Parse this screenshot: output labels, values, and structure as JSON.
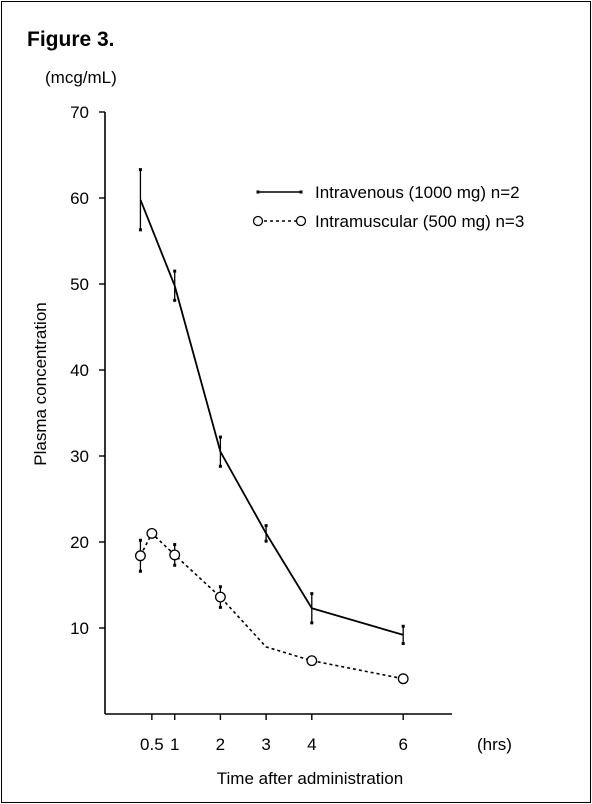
{
  "figure_label": "Figure 3.",
  "chart_data": {
    "type": "line",
    "title": "",
    "xlabel": "Time after administration",
    "x_unit": "(hrs)",
    "ylabel": "Plasma concentration",
    "y_unit": "(mcg/mL)",
    "ylim": [
      0,
      70
    ],
    "y_ticks": [
      10,
      20,
      30,
      40,
      50,
      60,
      70
    ],
    "x_ticks": [
      0.5,
      1,
      2,
      3,
      4,
      6
    ],
    "x_tick_labels": [
      "0.5",
      "1",
      "2",
      "3",
      "4",
      "6"
    ],
    "grid": false,
    "legend_position": "top-right",
    "series": [
      {
        "name": "Intravenous (1000 mg) n=2",
        "style": "solid",
        "marker": "none",
        "color": "#000000",
        "x": [
          0.25,
          1,
          2,
          3,
          4,
          6
        ],
        "values": [
          59.8,
          49.8,
          30.5,
          21,
          12.3,
          9.2
        ],
        "error": [
          3.5,
          1.7,
          1.7,
          0.9,
          1.7,
          1.0
        ]
      },
      {
        "name": "Intramuscular (500 mg) n=3",
        "style": "dotted",
        "marker": "open-circle",
        "color": "#000000",
        "x": [
          0.25,
          0.5,
          1,
          2,
          3,
          4,
          6
        ],
        "values": [
          18.4,
          21,
          18.5,
          13.6,
          7.8,
          6.2,
          4.1
        ],
        "error": [
          1.8,
          0,
          1.2,
          1.2,
          0,
          0,
          0
        ],
        "marker_shown": [
          true,
          true,
          true,
          true,
          false,
          true,
          true
        ]
      }
    ]
  }
}
